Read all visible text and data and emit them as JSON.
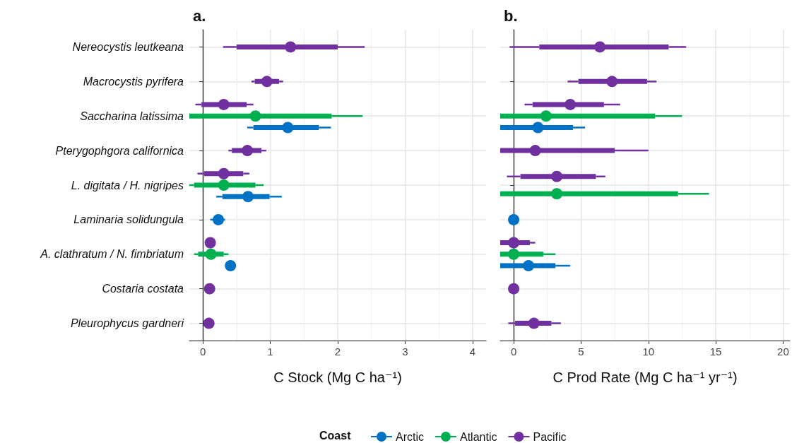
{
  "chart_data": [
    {
      "type": "scatter",
      "orientation": "horizontal",
      "title": "a.",
      "xlabel": "C Stock (Mg C ha⁻¹)",
      "legend": "bottom",
      "legend_title": "Coast",
      "grid": true,
      "marker": "circle",
      "categories": [
        "Nereocystis leutkeana",
        "Macrocystis pyrifera",
        "Saccharina latissima",
        "Pterygophgora californica",
        "L. digitata / H. nigripes",
        "Laminaria solidungula",
        "A. clathratum / N. fimbriatum",
        "Costaria costata",
        "Pleurophycus gardneri"
      ],
      "xlim": [
        -0.2,
        4.2
      ],
      "xticks": [
        0,
        1,
        2,
        3,
        4
      ],
      "series": [
        {
          "name": "Arctic",
          "color": "#0072c6",
          "values": [
            null,
            null,
            1.26,
            null,
            0.67,
            0.23,
            0.41,
            null,
            null
          ]
        },
        {
          "name": "Atlantic",
          "color": "#00b050",
          "values": [
            null,
            null,
            0.78,
            null,
            0.31,
            null,
            0.12,
            null,
            null
          ]
        },
        {
          "name": "Pacific",
          "color": "#7030a0",
          "values": [
            1.3,
            0.95,
            0.31,
            0.66,
            0.31,
            null,
            0.11,
            0.1,
            0.09
          ]
        },
        {
          "type": "bar",
          "color": "#0072c6",
          "base": [
            null,
            null,
            0.75,
            null,
            0.29,
            null,
            null,
            null,
            null
          ],
          "values": [
            null,
            null,
            0.97,
            null,
            0.7,
            null,
            null,
            null,
            null
          ]
        },
        {
          "type": "bar",
          "color": "#00b050",
          "base": [
            null,
            null,
            -0.2,
            null,
            -0.13,
            null,
            -0.07,
            null,
            null
          ],
          "values": [
            null,
            null,
            2.11,
            null,
            0.91,
            null,
            0.38,
            null,
            null
          ]
        },
        {
          "type": "bar",
          "color": "#7030a0",
          "base": [
            0.5,
            0.77,
            -0.02,
            0.43,
            0.02,
            null,
            null,
            null,
            null
          ],
          "values": [
            1.5,
            0.36,
            0.67,
            0.44,
            0.58,
            null,
            null,
            null,
            null
          ]
        },
        {
          "type": "bar",
          "color": "#0072c6",
          "base": [
            null,
            null,
            0.66,
            null,
            0.2,
            0.11,
            null,
            null,
            null
          ],
          "values": [
            null,
            null,
            0.09,
            null,
            0.09,
            0.22,
            null,
            null,
            null
          ]
        },
        {
          "type": "bar",
          "color": "#00b050",
          "base": [
            null,
            null,
            null,
            null,
            -0.2,
            null,
            -0.13,
            null,
            null
          ],
          "values": [
            null,
            null,
            null,
            null,
            0.07,
            null,
            0.06,
            null,
            null
          ]
        },
        {
          "type": "bar",
          "color": "#7030a0",
          "base": [
            0.3,
            0.72,
            -0.11,
            0.38,
            -0.08,
            null,
            null,
            null,
            null
          ],
          "values": [
            0.2,
            0.05,
            0.09,
            0.05,
            0.1,
            null,
            null,
            null,
            null
          ]
        },
        {
          "type": "bar",
          "color": "#0072c6",
          "base": [
            null,
            null,
            1.72,
            null,
            0.99,
            null,
            null,
            null,
            null
          ],
          "values": [
            null,
            null,
            0.18,
            null,
            0.18,
            null,
            null,
            null,
            null
          ]
        },
        {
          "type": "bar",
          "color": "#00b050",
          "base": [
            null,
            null,
            1.91,
            null,
            0.78,
            null,
            0.31,
            null,
            null
          ],
          "values": [
            null,
            null,
            0.46,
            null,
            0.12,
            null,
            0.07,
            null,
            null
          ]
        },
        {
          "type": "bar",
          "color": "#7030a0",
          "base": [
            2,
            1.13,
            0.65,
            0.87,
            0.6,
            null,
            null,
            null,
            null
          ],
          "values": [
            0.4,
            0.06,
            0.1,
            0.07,
            0.09,
            null,
            null,
            null,
            null
          ]
        }
      ]
    },
    {
      "type": "scatter",
      "orientation": "horizontal",
      "title": "b.",
      "xlabel": "C Prod Rate (Mg C ha⁻¹ yr⁻¹)",
      "grid": true,
      "marker": "circle",
      "tick_labels": "x",
      "categories": [
        null,
        null,
        null,
        null,
        null,
        null,
        null,
        null,
        null
      ],
      "xlim": [
        -1,
        20.5
      ],
      "xticks": [
        0,
        5,
        10,
        15,
        20
      ],
      "series": [
        {
          "color": "#0072c6",
          "values": [
            null,
            null,
            1.8,
            null,
            null,
            0,
            1.1,
            null,
            null
          ]
        },
        {
          "color": "#00b050",
          "values": [
            null,
            null,
            2.4,
            null,
            3.2,
            null,
            0,
            null,
            null
          ]
        },
        {
          "color": "#7030a0",
          "values": [
            6.4,
            7.3,
            4.2,
            1.6,
            3.2,
            null,
            0,
            0,
            1.5
          ]
        },
        {
          "type": "bar",
          "color": "#0072c6",
          "base": [
            null,
            null,
            -1,
            null,
            null,
            null,
            -1,
            null,
            null
          ],
          "values": [
            null,
            null,
            5.4,
            null,
            null,
            null,
            4.1,
            null,
            null
          ]
        },
        {
          "type": "bar",
          "color": "#00b050",
          "base": [
            null,
            null,
            -1,
            null,
            -1,
            null,
            -1,
            null,
            null
          ],
          "values": [
            null,
            null,
            11.5,
            null,
            13.2,
            null,
            3.2,
            null,
            null
          ]
        },
        {
          "type": "bar",
          "color": "#7030a0",
          "base": [
            1.9,
            4.8,
            1.4,
            -1,
            0.5,
            null,
            -1,
            null,
            0.1
          ],
          "values": [
            9.6,
            5.1,
            5.3,
            8.5,
            5.6,
            null,
            2.2,
            null,
            2.7
          ]
        },
        {
          "type": "bar",
          "color": "#0072c6",
          "base": [
            null,
            null,
            null,
            null,
            null,
            null,
            null,
            null,
            null
          ],
          "values": [
            null,
            null,
            null,
            null,
            null,
            null,
            null,
            null,
            null
          ]
        },
        {
          "type": "bar",
          "color": "#00b050",
          "base": [
            null,
            null,
            null,
            null,
            null,
            null,
            null,
            null,
            null
          ],
          "values": [
            null,
            null,
            null,
            null,
            null,
            null,
            null,
            null,
            null
          ]
        },
        {
          "type": "bar",
          "color": "#7030a0",
          "base": [
            -0.3,
            4,
            0.8,
            null,
            -0.5,
            null,
            null,
            null,
            -0.4
          ],
          "values": [
            2.2,
            0.8,
            0.6,
            null,
            1,
            null,
            null,
            null,
            0.5
          ]
        },
        {
          "type": "bar",
          "color": "#0072c6",
          "base": [
            null,
            null,
            4.4,
            null,
            null,
            null,
            3.1,
            null,
            null
          ],
          "values": [
            null,
            null,
            0.9,
            null,
            null,
            null,
            1.1,
            null,
            null
          ]
        },
        {
          "type": "bar",
          "color": "#00b050",
          "base": [
            null,
            null,
            10.5,
            null,
            12.2,
            null,
            2.2,
            null,
            null
          ],
          "values": [
            null,
            null,
            2,
            null,
            2.3,
            null,
            0.9,
            null,
            null
          ]
        },
        {
          "type": "bar",
          "color": "#7030a0",
          "base": [
            11.5,
            9.9,
            6.7,
            7.5,
            6.1,
            null,
            1.2,
            null,
            2.8
          ],
          "values": [
            1.3,
            0.7,
            1.2,
            2.5,
            0.7,
            null,
            0.4,
            null,
            0.7
          ]
        }
      ]
    }
  ]
}
